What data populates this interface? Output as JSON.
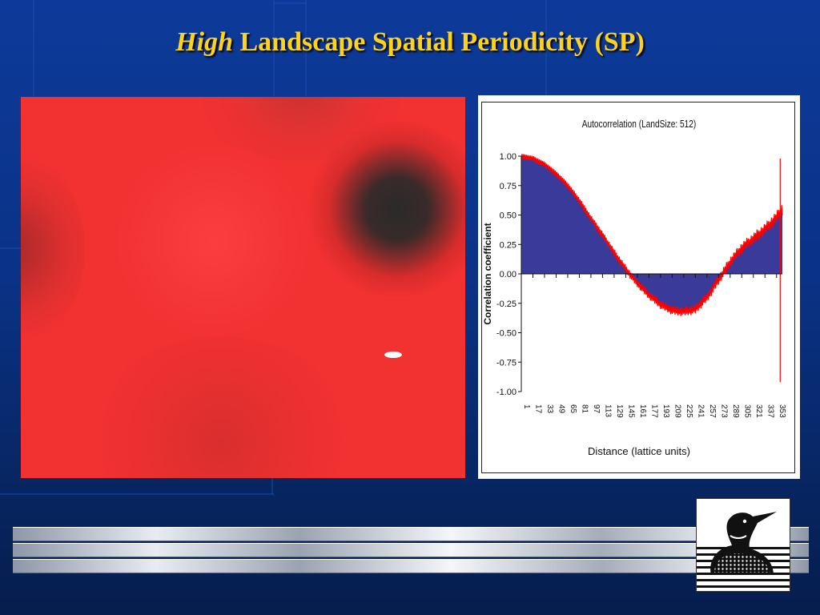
{
  "slide": {
    "title_italic": "High",
    "title_rest": " Landscape Spatial Periodicity (SP)"
  },
  "colors": {
    "background": "#0a3286",
    "title": "#ffd21e",
    "heatmap_red": "#f23131",
    "heatmap_dark": "#2e2e2e",
    "fill_series": "#3a3a9a",
    "line_series": "#ff0000"
  },
  "chart_data": {
    "type": "area",
    "title": "Autocorrelation (LandSize: 512)",
    "xlabel": "Distance (lattice units)",
    "ylabel": "Correlation coefficient",
    "ylim": [
      -1,
      1
    ],
    "yticks": [
      "1.00",
      "0.75",
      "0.50",
      "0.25",
      "0.00",
      "-0.25",
      "-0.50",
      "-0.75",
      "-1.00"
    ],
    "xticks": [
      "1",
      "17",
      "33",
      "49",
      "65",
      "81",
      "97",
      "113",
      "129",
      "145",
      "161",
      "177",
      "193",
      "209",
      "225",
      "241",
      "257",
      "273",
      "289",
      "305",
      "321",
      "337",
      "353"
    ],
    "x": [
      1,
      17,
      33,
      49,
      65,
      81,
      97,
      113,
      129,
      145,
      161,
      177,
      193,
      209,
      225,
      241,
      257,
      273,
      289,
      305,
      321,
      337,
      353,
      361
    ],
    "values": [
      1.0,
      0.98,
      0.93,
      0.85,
      0.75,
      0.62,
      0.47,
      0.33,
      0.18,
      0.04,
      -0.08,
      -0.18,
      -0.26,
      -0.31,
      -0.32,
      -0.3,
      -0.2,
      -0.05,
      0.1,
      0.22,
      0.3,
      0.38,
      0.48,
      0.55
    ],
    "legend": "none",
    "grid": false
  }
}
